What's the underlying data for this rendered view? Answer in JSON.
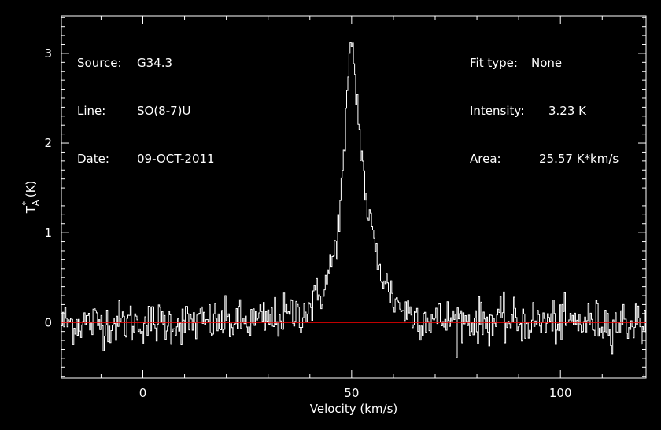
{
  "chart_data": {
    "type": "line",
    "xlabel": "Velocity (km/s)",
    "ylabel_main": "T",
    "ylabel_sub": "A",
    "ylabel_sup": "*",
    "ylabel_unit": "(K)",
    "xlim": [
      -19.5,
      120.5
    ],
    "ylim": [
      -0.62,
      3.42
    ],
    "x_ticks": [
      0,
      50,
      100
    ],
    "y_ticks": [
      0,
      1,
      2,
      3
    ],
    "grid": false,
    "baseline": 0,
    "peak": {
      "x": 50.0,
      "y": 3.23
    },
    "series": [
      {
        "color": "#ffffff",
        "x": [
          -19.5,
          0,
          25,
          30,
          35,
          38,
          40,
          42,
          44,
          46,
          47,
          48,
          49,
          49.5,
          50,
          50.5,
          51,
          52,
          53,
          54,
          56,
          58,
          60,
          62,
          65,
          70,
          100,
          120.5
        ],
        "y": [
          0,
          0,
          0,
          0.03,
          0.08,
          0.12,
          0.18,
          0.28,
          0.45,
          0.8,
          1.15,
          1.7,
          2.45,
          2.9,
          3.23,
          2.95,
          2.6,
          2.1,
          1.6,
          1.2,
          0.75,
          0.45,
          0.28,
          0.16,
          0.08,
          0.03,
          0,
          0
        ],
        "noise_rms": 0.12,
        "channel_width": 0.27
      }
    ]
  },
  "info": {
    "source_label": "Source:",
    "source_value": "G34.3",
    "line_label": "Line:",
    "line_value": "SO(8-7)U",
    "date_label": "Date:",
    "date_value": "09-OCT-2011",
    "fit_label": "Fit type:",
    "fit_value": "None",
    "intensity_label": "Intensity:",
    "intensity_value": "3.23 K",
    "area_label": "Area:",
    "area_value": "25.57 K*km/s"
  },
  "colors": {
    "background": "#000000",
    "axes": "#ffffff",
    "spectrum": "#ffffff",
    "baseline": "#ff0000"
  }
}
